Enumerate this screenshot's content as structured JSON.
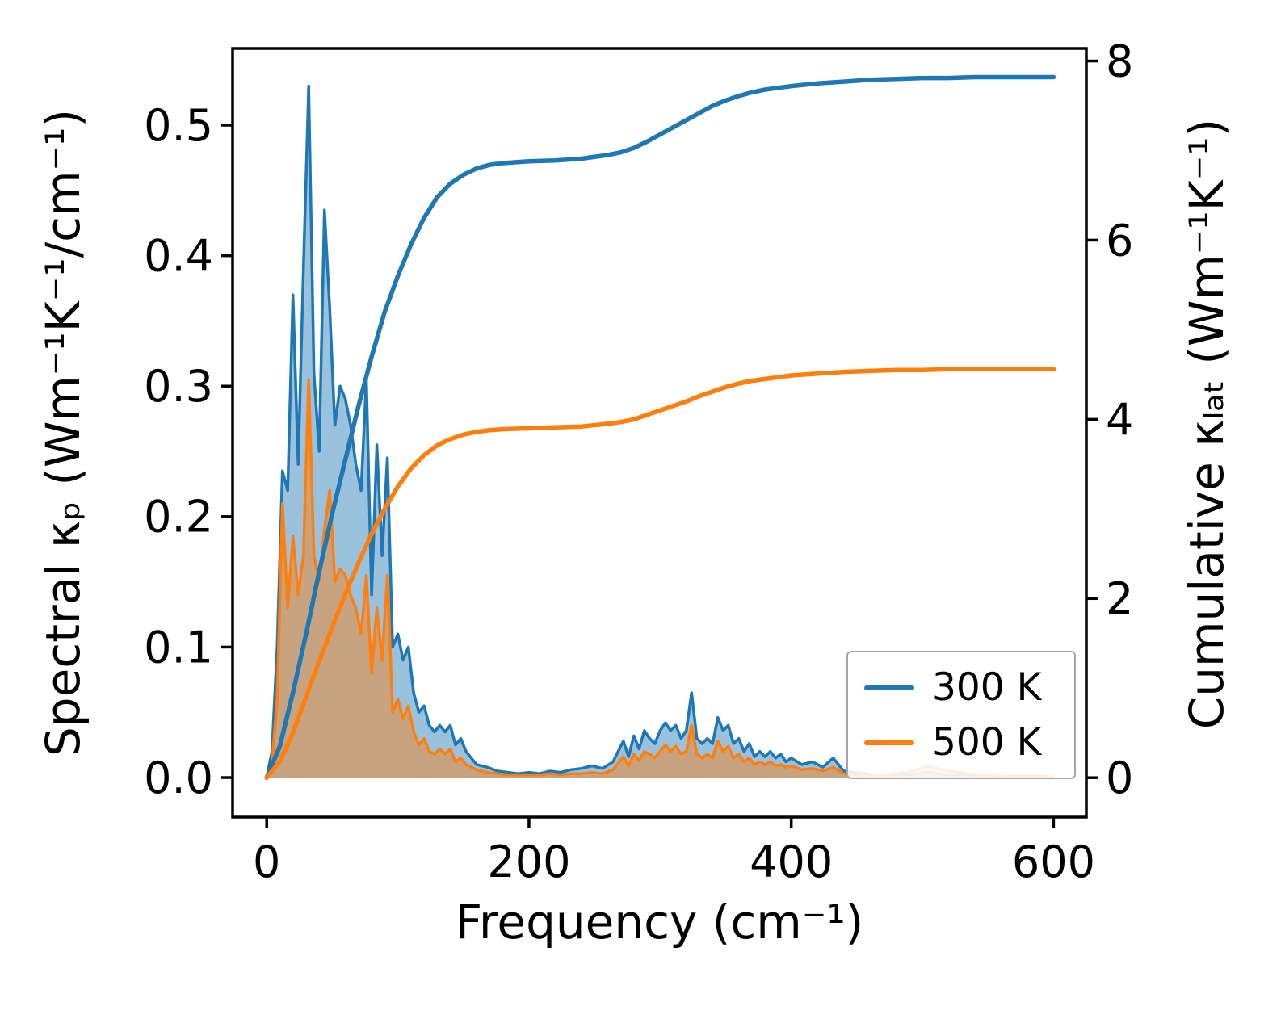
{
  "figure": {
    "xlabel": "Frequency (cm⁻¹)",
    "ylabel_left": "Spectral κₚ (Wm⁻¹K⁻¹/cm⁻¹)",
    "ylabel_right": "Cumulative κₗₐₜ (Wm⁻¹K⁻¹)",
    "legend": {
      "position": "lower right",
      "items": [
        {
          "label": "300 K",
          "color": "#1f77b4"
        },
        {
          "label": "500 K",
          "color": "#ff7f0e"
        }
      ]
    }
  },
  "chart_data": {
    "type": "line",
    "title": "",
    "xlabel": "Frequency (cm⁻¹)",
    "ylabel_left": "Spectral κₚ (Wm⁻¹K⁻¹/cm⁻¹)",
    "ylabel_right": "Cumulative κₗₐₜ (Wm⁻¹K⁻¹)",
    "grid": false,
    "legend_position": "lower right",
    "axes": {
      "x": {
        "min": -26,
        "max": 625,
        "tick_values": [
          0,
          200,
          400,
          600
        ],
        "tick_labels": [
          "0",
          "200",
          "400",
          "600"
        ]
      },
      "y_left": {
        "min": -0.0303,
        "max": 0.5588,
        "tick_values": [
          0,
          0.1,
          0.2,
          0.3,
          0.4,
          0.5
        ],
        "tick_labels": [
          "0.0",
          "0.1",
          "0.2",
          "0.3",
          "0.4",
          "0.5"
        ]
      },
      "y_right": {
        "min": -0.44,
        "max": 8.14,
        "tick_values": [
          0,
          2,
          4,
          6,
          8
        ],
        "tick_labels": [
          "0",
          "2",
          "4",
          "6",
          "8"
        ]
      }
    },
    "series": [
      {
        "name": "spectral_300K",
        "legend": "300 K",
        "axis": "left",
        "style": "area",
        "color": "#1f77b4",
        "fill_alpha": 0.45,
        "x": [
          0,
          4,
          8,
          12,
          16,
          20,
          24,
          28,
          32,
          36,
          40,
          44,
          48,
          52,
          56,
          60,
          64,
          68,
          72,
          76,
          80,
          84,
          88,
          92,
          96,
          100,
          104,
          108,
          112,
          116,
          120,
          124,
          128,
          132,
          136,
          140,
          144,
          148,
          152,
          156,
          160,
          168,
          176,
          184,
          192,
          200,
          208,
          216,
          224,
          232,
          240,
          248,
          256,
          264,
          272,
          276,
          280,
          284,
          288,
          292,
          296,
          300,
          304,
          308,
          312,
          316,
          320,
          324,
          328,
          332,
          336,
          340,
          344,
          348,
          352,
          356,
          360,
          364,
          368,
          372,
          376,
          380,
          384,
          388,
          392,
          396,
          400,
          408,
          416,
          424,
          432,
          440,
          448,
          456,
          464,
          472,
          480,
          488,
          496,
          504,
          512,
          520,
          528,
          536,
          544,
          552,
          560,
          568,
          576,
          584,
          592,
          600
        ],
        "y": [
          0.0,
          0.02,
          0.1,
          0.235,
          0.22,
          0.37,
          0.24,
          0.39,
          0.53,
          0.31,
          0.25,
          0.435,
          0.36,
          0.27,
          0.3,
          0.29,
          0.27,
          0.24,
          0.22,
          0.305,
          0.14,
          0.255,
          0.17,
          0.245,
          0.1,
          0.11,
          0.09,
          0.1,
          0.065,
          0.05,
          0.055,
          0.04,
          0.035,
          0.04,
          0.035,
          0.04,
          0.025,
          0.03,
          0.02,
          0.015,
          0.01,
          0.008,
          0.005,
          0.004,
          0.003,
          0.004,
          0.003,
          0.005,
          0.004,
          0.006,
          0.007,
          0.009,
          0.007,
          0.012,
          0.028,
          0.016,
          0.032,
          0.022,
          0.036,
          0.03,
          0.026,
          0.036,
          0.042,
          0.036,
          0.04,
          0.03,
          0.036,
          0.065,
          0.03,
          0.026,
          0.03,
          0.026,
          0.046,
          0.036,
          0.04,
          0.026,
          0.03,
          0.02,
          0.026,
          0.016,
          0.02,
          0.016,
          0.02,
          0.015,
          0.018,
          0.012,
          0.015,
          0.01,
          0.012,
          0.008,
          0.015,
          0.005,
          0.004,
          0.003,
          0.002,
          0.002,
          0.002,
          0.002,
          0.003,
          0.004,
          0.003,
          0.002,
          0.002,
          0.002,
          0.001,
          0.001,
          0.001,
          0.001,
          0.001,
          0.001,
          0.001,
          0.001
        ]
      },
      {
        "name": "spectral_500K",
        "legend": "500 K",
        "axis": "left",
        "style": "area",
        "color": "#ff7f0e",
        "fill_alpha": 0.45,
        "x": [
          0,
          4,
          8,
          12,
          16,
          20,
          24,
          28,
          32,
          36,
          40,
          44,
          48,
          52,
          56,
          60,
          64,
          68,
          72,
          76,
          80,
          84,
          88,
          92,
          96,
          100,
          104,
          108,
          112,
          116,
          120,
          124,
          128,
          132,
          136,
          140,
          144,
          148,
          152,
          156,
          160,
          168,
          176,
          184,
          192,
          200,
          208,
          216,
          224,
          232,
          240,
          248,
          256,
          264,
          272,
          276,
          280,
          284,
          288,
          292,
          296,
          300,
          304,
          308,
          312,
          316,
          320,
          324,
          328,
          332,
          336,
          340,
          344,
          348,
          352,
          356,
          360,
          364,
          368,
          372,
          376,
          380,
          384,
          388,
          392,
          396,
          400,
          408,
          416,
          424,
          432,
          440,
          448,
          456,
          464,
          472,
          480,
          488,
          496,
          504,
          512,
          520,
          528,
          536,
          544,
          552,
          560,
          568,
          576,
          584,
          592,
          600
        ],
        "y": [
          0.0,
          0.01,
          0.06,
          0.21,
          0.13,
          0.185,
          0.14,
          0.17,
          0.305,
          0.17,
          0.15,
          0.19,
          0.22,
          0.15,
          0.16,
          0.155,
          0.14,
          0.13,
          0.11,
          0.155,
          0.08,
          0.13,
          0.09,
          0.155,
          0.05,
          0.06,
          0.045,
          0.055,
          0.035,
          0.025,
          0.03,
          0.02,
          0.018,
          0.022,
          0.018,
          0.022,
          0.012,
          0.015,
          0.01,
          0.008,
          0.006,
          0.004,
          0.003,
          0.002,
          0.002,
          0.002,
          0.002,
          0.003,
          0.002,
          0.003,
          0.003,
          0.004,
          0.003,
          0.006,
          0.016,
          0.009,
          0.018,
          0.013,
          0.02,
          0.018,
          0.015,
          0.02,
          0.025,
          0.02,
          0.024,
          0.018,
          0.02,
          0.04,
          0.018,
          0.015,
          0.018,
          0.015,
          0.028,
          0.02,
          0.024,
          0.015,
          0.018,
          0.012,
          0.015,
          0.01,
          0.012,
          0.01,
          0.012,
          0.009,
          0.01,
          0.008,
          0.009,
          0.006,
          0.007,
          0.005,
          0.008,
          0.003,
          0.002,
          0.002,
          0.002,
          0.002,
          0.003,
          0.004,
          0.006,
          0.008,
          0.007,
          0.005,
          0.004,
          0.003,
          0.002,
          0.002,
          0.001,
          0.001,
          0.001,
          0.001,
          0.001,
          0.001
        ]
      },
      {
        "name": "cumulative_300K",
        "legend": "300 K",
        "axis": "right",
        "style": "line",
        "color": "#1f77b4",
        "x": [
          0,
          10,
          20,
          30,
          40,
          50,
          60,
          70,
          80,
          90,
          100,
          110,
          120,
          130,
          140,
          150,
          160,
          170,
          180,
          200,
          220,
          240,
          260,
          270,
          280,
          290,
          300,
          310,
          320,
          330,
          340,
          350,
          360,
          370,
          380,
          390,
          400,
          420,
          440,
          460,
          480,
          500,
          520,
          540,
          560,
          580,
          600
        ],
        "y": [
          0.0,
          0.35,
          0.95,
          1.6,
          2.3,
          2.95,
          3.55,
          4.15,
          4.7,
          5.2,
          5.6,
          5.95,
          6.25,
          6.48,
          6.63,
          6.73,
          6.8,
          6.84,
          6.86,
          6.88,
          6.89,
          6.91,
          6.95,
          6.98,
          7.03,
          7.1,
          7.18,
          7.26,
          7.34,
          7.42,
          7.5,
          7.56,
          7.61,
          7.65,
          7.68,
          7.7,
          7.72,
          7.75,
          7.77,
          7.79,
          7.8,
          7.81,
          7.81,
          7.82,
          7.82,
          7.82,
          7.82
        ]
      },
      {
        "name": "cumulative_500K",
        "legend": "500 K",
        "axis": "right",
        "style": "line",
        "color": "#ff7f0e",
        "x": [
          0,
          10,
          20,
          30,
          40,
          50,
          60,
          70,
          80,
          90,
          100,
          110,
          120,
          130,
          140,
          150,
          160,
          170,
          180,
          200,
          220,
          240,
          260,
          270,
          280,
          290,
          300,
          310,
          320,
          330,
          340,
          350,
          360,
          370,
          380,
          390,
          400,
          420,
          440,
          460,
          480,
          500,
          520,
          540,
          560,
          580,
          600
        ],
        "y": [
          0.0,
          0.18,
          0.5,
          0.9,
          1.3,
          1.68,
          2.05,
          2.4,
          2.72,
          3.0,
          3.25,
          3.45,
          3.6,
          3.71,
          3.78,
          3.83,
          3.86,
          3.88,
          3.89,
          3.9,
          3.91,
          3.92,
          3.95,
          3.97,
          4.0,
          4.05,
          4.1,
          4.15,
          4.2,
          4.26,
          4.31,
          4.36,
          4.4,
          4.43,
          4.45,
          4.47,
          4.49,
          4.51,
          4.53,
          4.54,
          4.55,
          4.55,
          4.56,
          4.56,
          4.56,
          4.56,
          4.56
        ]
      }
    ]
  }
}
